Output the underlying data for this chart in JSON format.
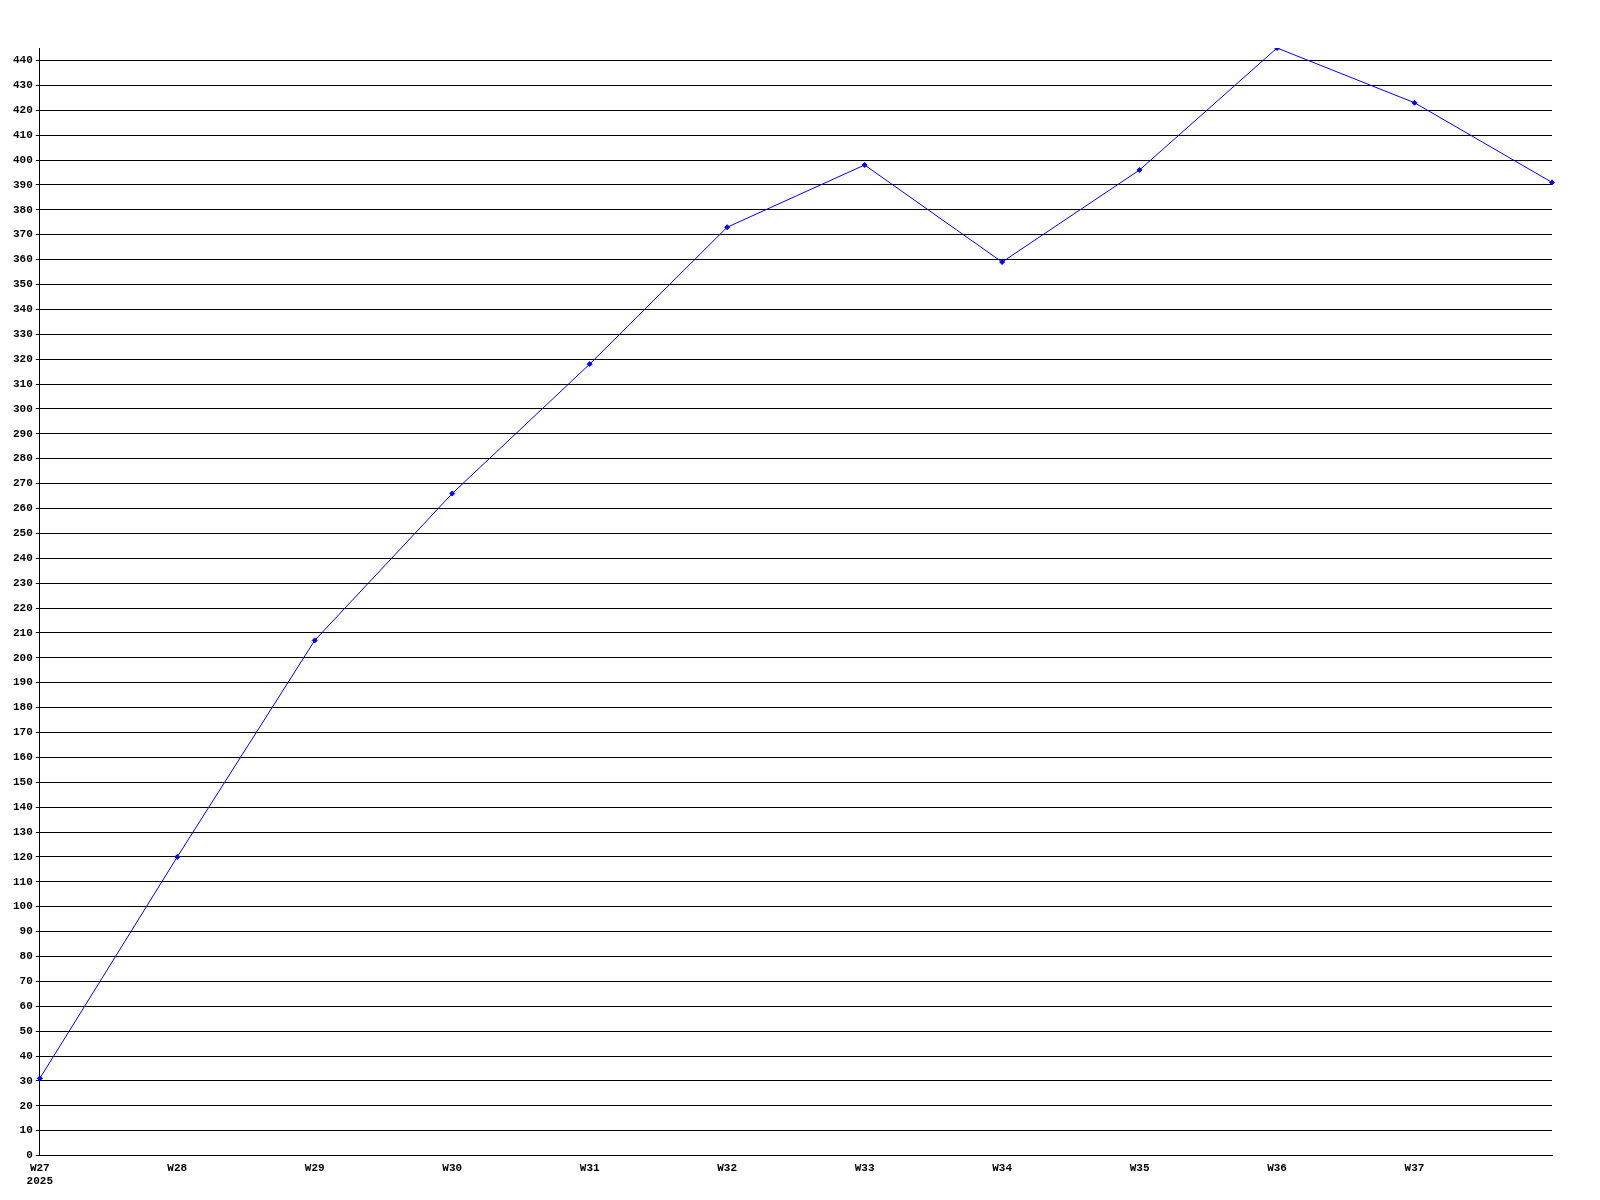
{
  "chart_data": {
    "type": "line",
    "categories": [
      "W27\n2025",
      "W28",
      "W29",
      "W30",
      "W31",
      "W32",
      "W33",
      "W34",
      "W35",
      "W36",
      "W37",
      null
    ],
    "series": [
      {
        "color": "#0000ff",
        "values": [
          31,
          120,
          207,
          266,
          318,
          373,
          398,
          359,
          396,
          445,
          423,
          391
        ]
      }
    ],
    "ylim": [
      0,
      445
    ],
    "yticks": [
      0,
      10,
      20,
      30,
      40,
      50,
      60,
      70,
      80,
      90,
      100,
      110,
      120,
      130,
      140,
      150,
      160,
      170,
      180,
      190,
      200,
      210,
      220,
      230,
      240,
      250,
      260,
      270,
      280,
      290,
      300,
      310,
      320,
      330,
      340,
      350,
      360,
      370,
      380,
      390,
      400,
      410,
      420,
      430,
      440
    ],
    "grid": "y",
    "legend": false,
    "marker": "diamond",
    "line_style": "solid"
  }
}
